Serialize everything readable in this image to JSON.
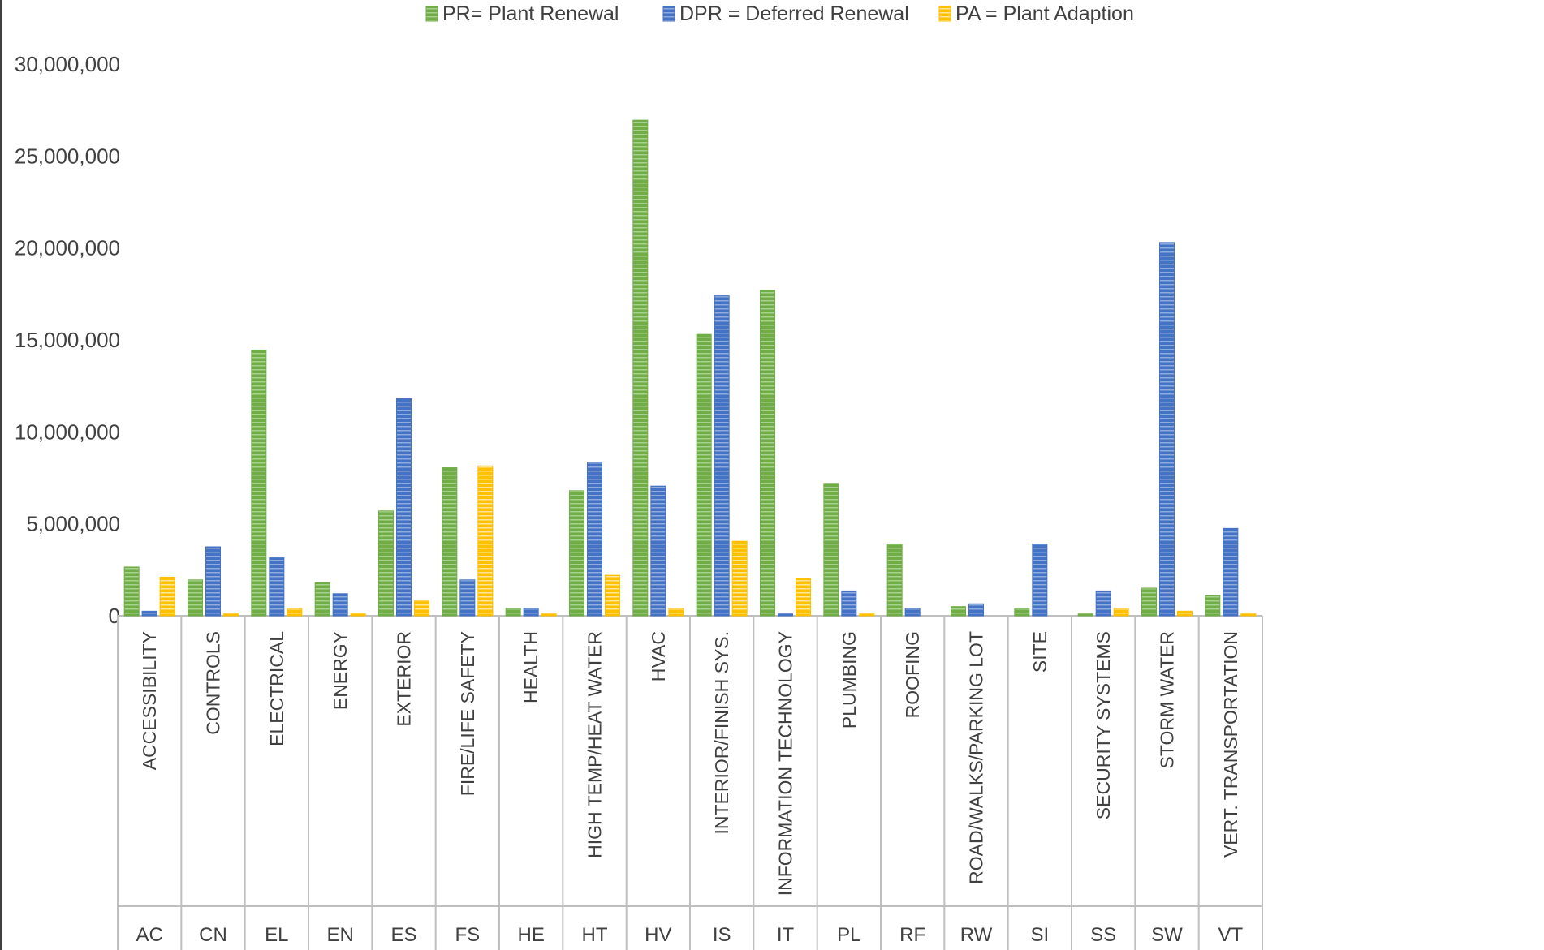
{
  "chart_data": {
    "type": "bar",
    "title": "",
    "xlabel": "",
    "ylabel": "",
    "ylim": [
      0,
      30000000
    ],
    "yticks": [
      0,
      5000000,
      10000000,
      15000000,
      20000000,
      25000000,
      30000000
    ],
    "ytick_labels": [
      "0",
      "5,000,000",
      "10,000,000",
      "15,000,000",
      "20,000,000",
      "25,000,000",
      "30,000,000"
    ],
    "grid": false,
    "legend_position": "top",
    "categories": [
      "ACCESSIBILITY",
      "CONTROLS",
      "ELECTRICAL",
      "ENERGY",
      "EXTERIOR",
      "FIRE/LIFE SAFETY",
      "HEALTH",
      "HIGH TEMP/HEAT WATER",
      "HVAC",
      "INTERIOR/FINISH SYS.",
      "INFORMATION TECHNOLOGY",
      "PLUMBING",
      "ROOFING",
      "ROAD/WALKS/PARKING LOT",
      "SITE",
      "SECURITY SYSTEMS",
      "STORM WATER",
      "VERT. TRANSPORTATION"
    ],
    "category_codes": [
      "AC",
      "CN",
      "EL",
      "EN",
      "ES",
      "FS",
      "HE",
      "HT",
      "HV",
      "IS",
      "IT",
      "PL",
      "RF",
      "RW",
      "SI",
      "SS",
      "SW",
      "VT"
    ],
    "series": [
      {
        "name": "PR= Plant  Renewal",
        "color": "#70ad47",
        "values": [
          2650000,
          1950000,
          14450000,
          1800000,
          5700000,
          8050000,
          400000,
          6800000,
          26950000,
          15300000,
          17700000,
          7200000,
          3900000,
          500000,
          400000,
          100000,
          1500000,
          1100000
        ]
      },
      {
        "name": "DPR = Deferred Renewal",
        "color": "#4472c4",
        "values": [
          250000,
          3750000,
          3150000,
          1200000,
          11800000,
          1950000,
          400000,
          8350000,
          7050000,
          17400000,
          100000,
          1350000,
          400000,
          650000,
          3900000,
          1350000,
          20300000,
          4750000
        ]
      },
      {
        "name": "PA = Plant Adaption",
        "color": "#ffc000",
        "values": [
          2100000,
          100000,
          400000,
          100000,
          800000,
          8150000,
          100000,
          2200000,
          400000,
          4050000,
          2050000,
          100000,
          0,
          0,
          0,
          400000,
          250000,
          100000
        ]
      }
    ]
  }
}
